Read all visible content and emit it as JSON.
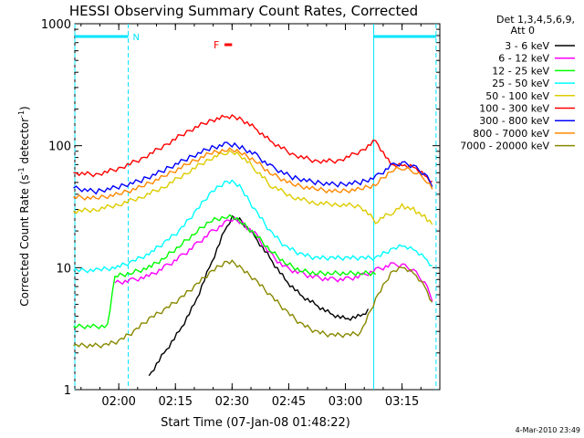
{
  "chart_data": {
    "type": "line",
    "title": "HESSI Observing Summary Count Rates, Corrected",
    "xlabel": "Start Time (07-Jan-08 01:48:22)",
    "ylabel_main": "Corrected Count Rate (s",
    "ylabel_sup1": "-1",
    "ylabel_mid": " detector",
    "ylabel_sup2": "-1",
    "ylabel_end": ")",
    "yscale": "log",
    "ylim": [
      1,
      1000
    ],
    "xlim": [
      "01:48:22",
      "03:25:00"
    ],
    "x_ticks": [
      "02:00",
      "02:15",
      "02:30",
      "02:45",
      "03:00",
      "03:15"
    ],
    "y_ticks": [
      "1",
      "10",
      "100",
      "1000"
    ],
    "grid": false,
    "legend_position": "top-right",
    "legend_header": [
      "Det 1,3,4,5,6,9,",
      "Att 0"
    ],
    "night_flag": "N",
    "flare_flag": "F",
    "night_intervals": [
      [
        "01:48:22",
        "02:02:30"
      ],
      [
        "03:07:30",
        "03:24:00"
      ]
    ],
    "flare_interval": [
      "02:28:00",
      "02:30:00"
    ],
    "timestamp": "4-Mar-2010 23:49",
    "series": [
      {
        "name": "3 - 6 keV",
        "color": "#000000",
        "x": [
          "02:08",
          "02:12",
          "02:16",
          "02:20",
          "02:24",
          "02:28",
          "02:30",
          "02:32",
          "02:36",
          "02:40",
          "02:44",
          "02:48",
          "02:52",
          "02:56",
          "03:00",
          "03:04",
          "03:06"
        ],
        "values": [
          1.3,
          2.0,
          3.0,
          5.0,
          10,
          20,
          26,
          25,
          18,
          12,
          8.0,
          6.0,
          5.0,
          4.2,
          3.8,
          4.0,
          4.5
        ]
      },
      {
        "name": "6 - 12 keV",
        "color": "#ff00ff",
        "x": [
          "01:59",
          "02:03",
          "02:08",
          "02:12",
          "02:16",
          "02:20",
          "02:24",
          "02:28",
          "02:30",
          "02:32",
          "02:36",
          "02:40",
          "02:44",
          "02:48",
          "02:52",
          "02:56",
          "03:00",
          "03:04",
          "03:08",
          "03:12",
          "03:15",
          "03:18",
          "03:21",
          "03:23"
        ],
        "values": [
          7.5,
          7.8,
          8.5,
          10,
          12,
          15,
          19,
          23,
          25,
          24,
          19,
          13,
          10,
          9.0,
          8.3,
          8.0,
          8.0,
          8.5,
          9.5,
          10.5,
          10.5,
          9.5,
          7.5,
          5.5
        ]
      },
      {
        "name": "12 - 25 keV",
        "color": "#00ff00",
        "x": [
          "01:48",
          "01:57",
          "01:59",
          "02:03",
          "02:08",
          "02:12",
          "02:16",
          "02:20",
          "02:24",
          "02:28",
          "02:30",
          "02:32",
          "02:36",
          "02:40",
          "02:44",
          "02:48",
          "02:52",
          "02:56",
          "03:00",
          "03:04",
          "03:08"
        ],
        "values": [
          3.3,
          3.3,
          8.5,
          9.0,
          10,
          12,
          15,
          19,
          24,
          26,
          26,
          24,
          19,
          14,
          11,
          9.5,
          9.0,
          9.0,
          9.0,
          9.0,
          9.0
        ]
      },
      {
        "name": "25 - 50 keV",
        "color": "#00ffff",
        "x": [
          "01:48",
          "01:54",
          "01:59",
          "02:03",
          "02:08",
          "02:12",
          "02:16",
          "02:20",
          "02:24",
          "02:28",
          "02:30",
          "02:32",
          "02:36",
          "02:40",
          "02:44",
          "02:48",
          "02:52",
          "02:56",
          "03:00",
          "03:04",
          "03:08",
          "03:12",
          "03:15",
          "03:18",
          "03:21",
          "03:23"
        ],
        "values": [
          9.5,
          9.5,
          10,
          11,
          13,
          16,
          20,
          28,
          40,
          50,
          50,
          46,
          30,
          20,
          15,
          13,
          12,
          12,
          12,
          12,
          12,
          14,
          15,
          14,
          12,
          10
        ]
      },
      {
        "name": "50 - 100 keV",
        "color": "#ddcc00",
        "x": [
          "01:48",
          "01:54",
          "02:00",
          "02:06",
          "02:12",
          "02:18",
          "02:24",
          "02:28",
          "02:30",
          "02:32",
          "02:36",
          "02:40",
          "02:46",
          "02:52",
          "02:58",
          "03:04",
          "03:08",
          "03:12",
          "03:15",
          "03:18",
          "03:21",
          "03:23"
        ],
        "values": [
          29,
          30,
          33,
          38,
          46,
          60,
          78,
          88,
          90,
          85,
          65,
          48,
          38,
          34,
          33,
          32,
          24,
          28,
          32,
          30,
          26,
          23
        ]
      },
      {
        "name": "100 - 300 keV",
        "color": "#ff0000",
        "x": [
          "01:48",
          "01:54",
          "02:00",
          "02:06",
          "02:12",
          "02:18",
          "02:24",
          "02:28",
          "02:30",
          "02:32",
          "02:36",
          "02:40",
          "02:46",
          "02:52",
          "02:58",
          "03:04",
          "03:08",
          "03:12",
          "03:15",
          "03:18",
          "03:21",
          "03:23"
        ],
        "values": [
          60,
          58,
          65,
          78,
          100,
          130,
          160,
          172,
          175,
          168,
          140,
          110,
          85,
          75,
          75,
          90,
          110,
          70,
          70,
          68,
          58,
          50
        ]
      },
      {
        "name": "300 - 800 keV",
        "color": "#0000ff",
        "x": [
          "01:48",
          "01:54",
          "02:00",
          "02:06",
          "02:12",
          "02:18",
          "02:24",
          "02:28",
          "02:30",
          "02:32",
          "02:36",
          "02:40",
          "02:46",
          "02:52",
          "02:58",
          "03:04",
          "03:08",
          "03:12",
          "03:15",
          "03:18",
          "03:21",
          "03:23"
        ],
        "values": [
          45,
          42,
          46,
          52,
          63,
          78,
          95,
          102,
          102,
          98,
          85,
          68,
          55,
          50,
          48,
          50,
          55,
          68,
          72,
          68,
          58,
          48
        ]
      },
      {
        "name": "800 - 7000 keV",
        "color": "#ff8800",
        "x": [
          "01:48",
          "01:54",
          "02:00",
          "02:06",
          "02:12",
          "02:18",
          "02:24",
          "02:28",
          "02:30",
          "02:32",
          "02:36",
          "02:40",
          "02:46",
          "02:52",
          "02:58",
          "03:04",
          "03:08",
          "03:12",
          "03:15",
          "03:18",
          "03:21",
          "03:23"
        ],
        "values": [
          38,
          37,
          40,
          46,
          56,
          70,
          86,
          92,
          92,
          88,
          76,
          60,
          48,
          44,
          42,
          44,
          48,
          62,
          66,
          62,
          54,
          44
        ]
      },
      {
        "name": "7000 - 20000 keV",
        "color": "#888800",
        "x": [
          "01:48",
          "01:56",
          "02:00",
          "02:04",
          "02:08",
          "02:12",
          "02:16",
          "02:20",
          "02:24",
          "02:28",
          "02:30",
          "02:32",
          "02:36",
          "02:40",
          "02:44",
          "02:48",
          "02:52",
          "02:56",
          "03:00",
          "03:04",
          "03:08",
          "03:12",
          "03:15",
          "03:18",
          "03:21",
          "03:23"
        ],
        "values": [
          2.3,
          2.3,
          2.5,
          3.0,
          3.8,
          4.5,
          5.5,
          7.0,
          9.0,
          11,
          11,
          10,
          8.0,
          6.0,
          4.5,
          3.5,
          3.0,
          2.8,
          2.8,
          2.9,
          5.5,
          9.0,
          10,
          9.0,
          7.0,
          5.0
        ]
      }
    ]
  }
}
